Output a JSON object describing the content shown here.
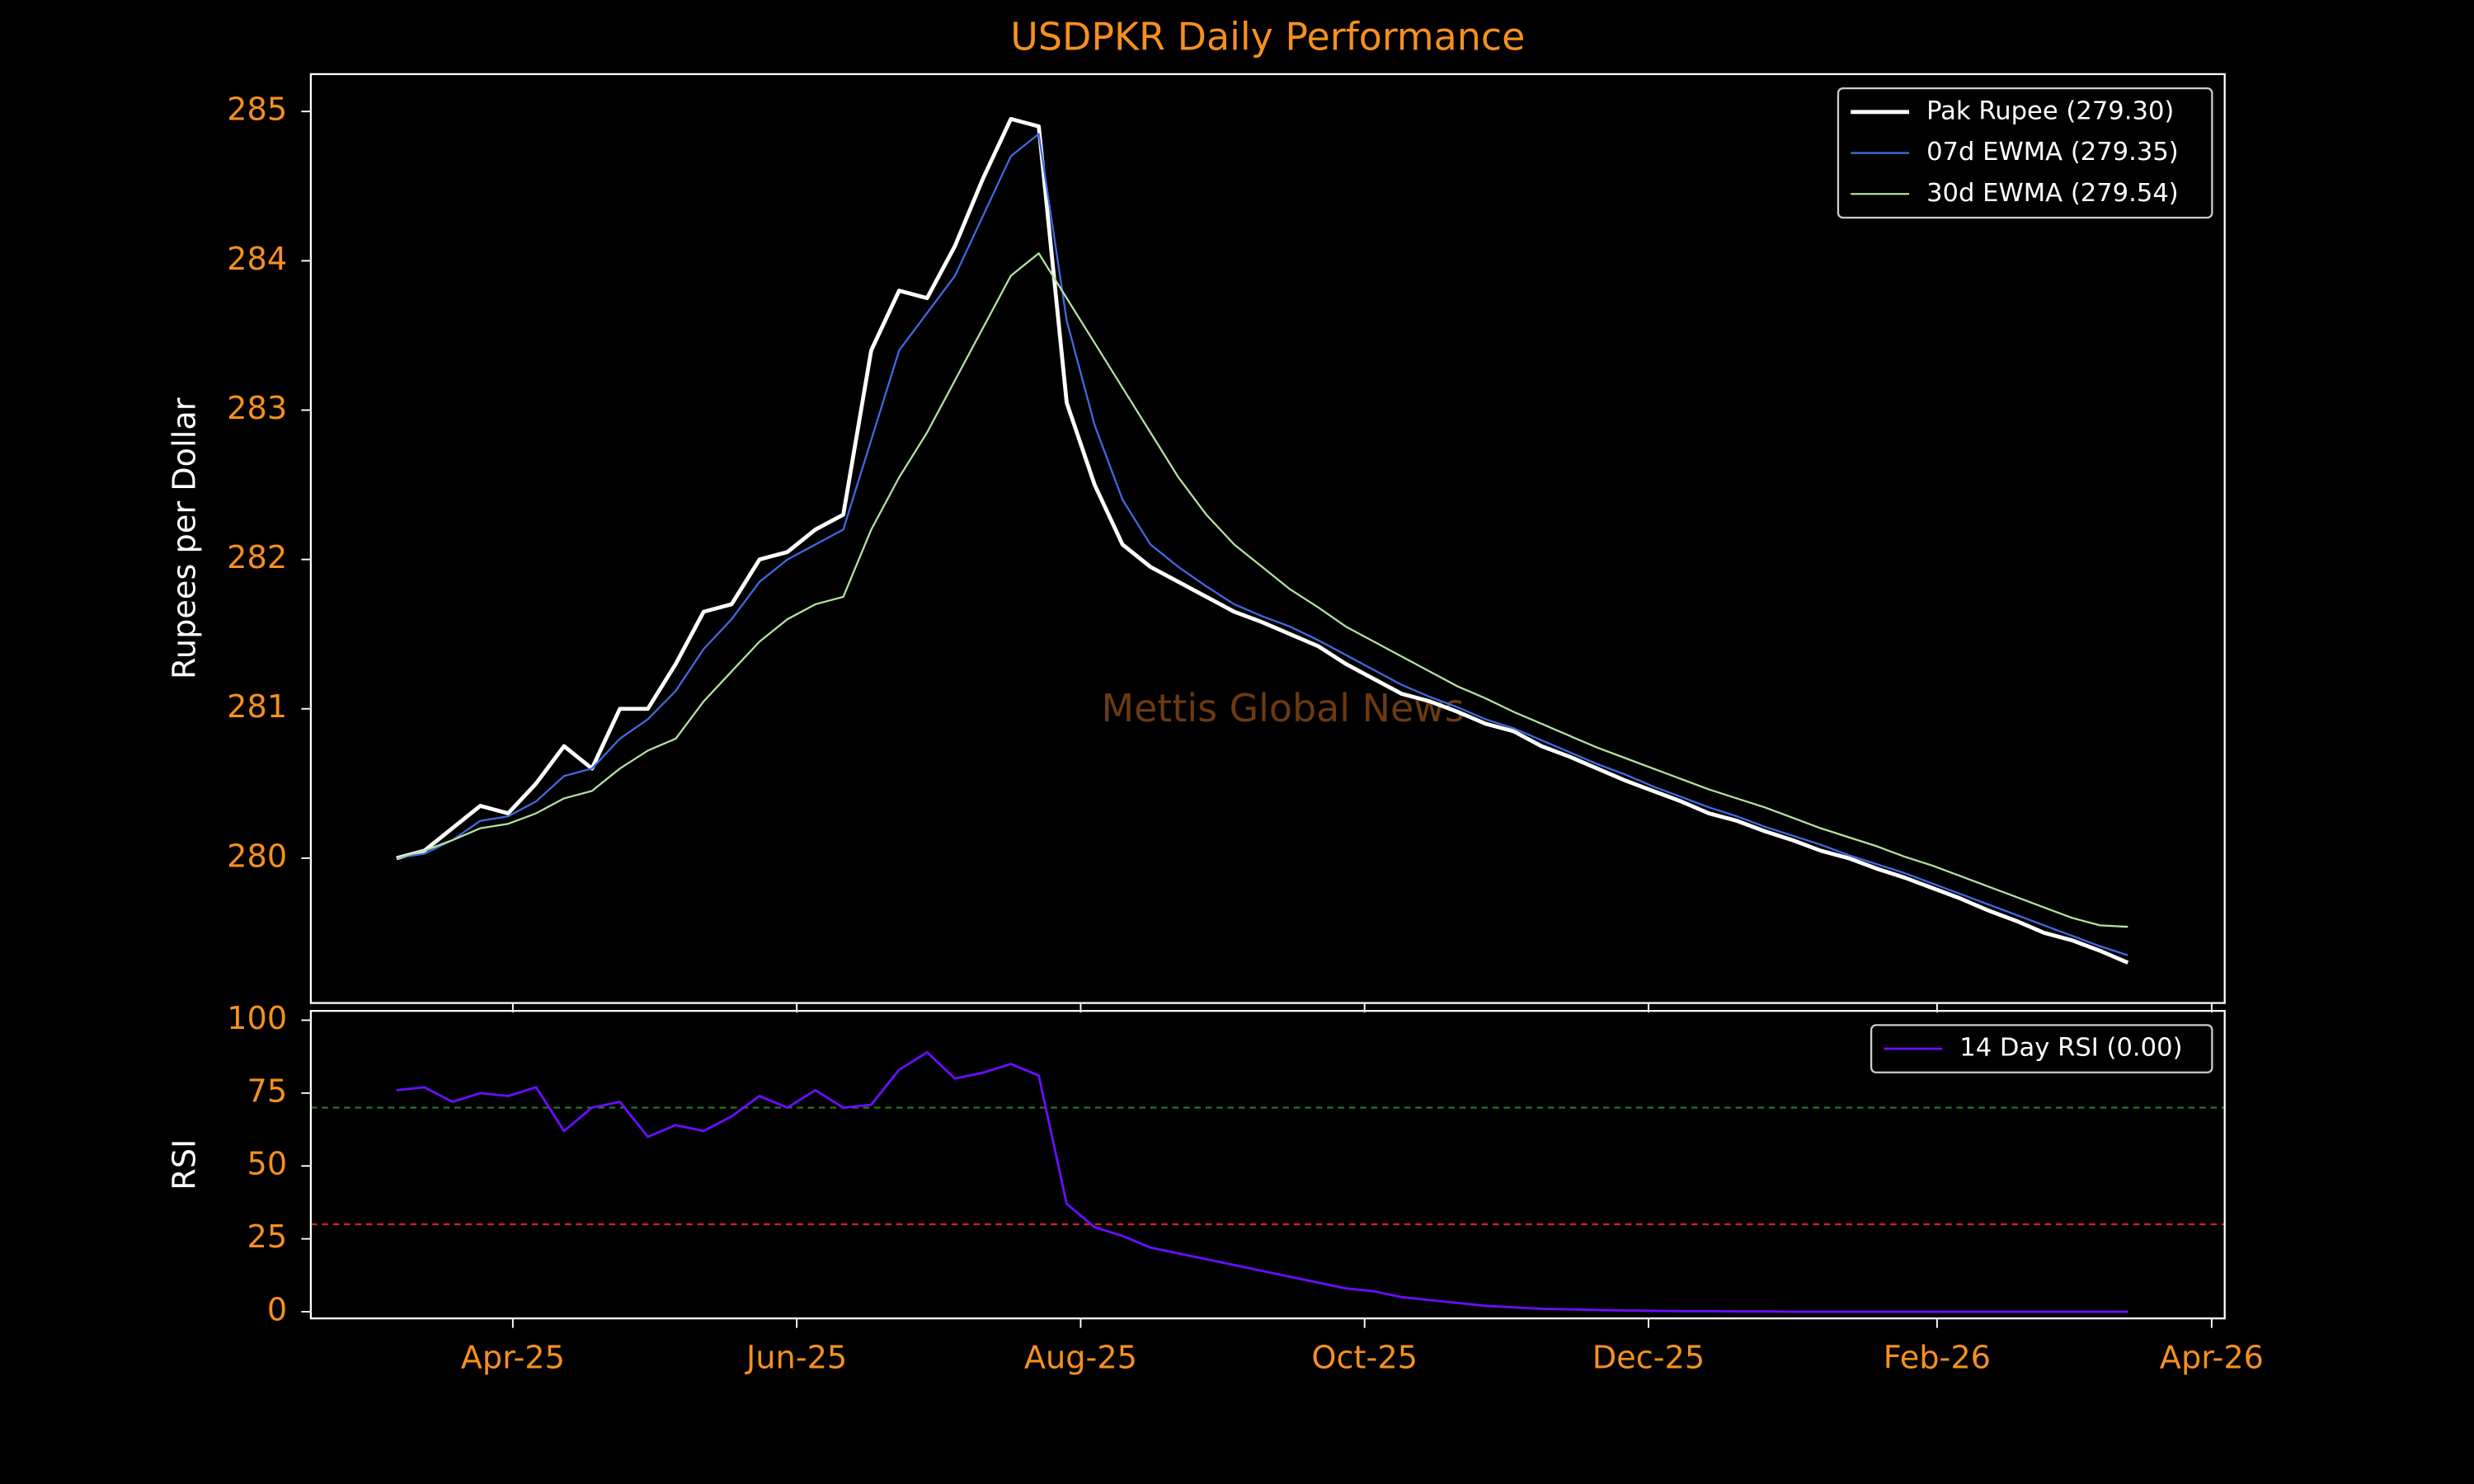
{
  "chart_data": [
    {
      "type": "line",
      "title": "USDPKR Daily Performance",
      "ylabel": "Rupees per Dollar",
      "watermark": "Mettis Global News",
      "x": [
        6,
        12,
        18,
        24,
        30,
        36,
        42,
        48,
        54,
        60,
        66,
        72,
        78,
        84,
        90,
        96,
        102,
        108,
        114,
        120,
        126,
        132,
        138,
        144,
        150,
        156,
        162,
        168,
        174,
        180,
        186,
        192,
        198,
        204,
        210,
        216,
        222,
        228,
        234,
        240,
        246,
        252,
        258,
        264,
        270,
        276,
        282,
        288,
        294,
        300,
        306,
        312,
        318,
        324,
        330,
        336,
        342,
        348,
        354,
        360,
        366,
        372,
        378
      ],
      "ylim": [
        279.03,
        285.25
      ],
      "yticks": [
        280,
        281,
        282,
        283,
        284,
        285
      ],
      "legend": "upper right",
      "series": [
        {
          "name": "Pak Rupee (279.30)",
          "color": "#ffffff",
          "width": 2.5,
          "values": [
            280.0,
            280.05,
            280.2,
            280.35,
            280.3,
            280.5,
            280.75,
            280.6,
            281.0,
            281.0,
            281.3,
            281.65,
            281.7,
            282.0,
            282.05,
            282.2,
            282.3,
            283.4,
            283.8,
            283.75,
            284.1,
            284.55,
            284.95,
            284.9,
            283.05,
            282.5,
            282.1,
            281.95,
            281.85,
            281.75,
            281.65,
            281.58,
            281.5,
            281.42,
            281.3,
            281.2,
            281.1,
            281.05,
            280.98,
            280.9,
            280.85,
            280.75,
            280.68,
            280.6,
            280.52,
            280.45,
            280.38,
            280.3,
            280.25,
            280.18,
            280.12,
            280.05,
            280.0,
            279.93,
            279.87,
            279.8,
            279.73,
            279.65,
            279.58,
            279.5,
            279.45,
            279.38,
            279.3
          ]
        },
        {
          "name": "07d EWMA (279.35)",
          "color": "#4169e1",
          "width": 1.2,
          "values": [
            280.0,
            280.03,
            280.12,
            280.25,
            280.28,
            280.38,
            280.55,
            280.6,
            280.8,
            280.93,
            281.12,
            281.4,
            281.6,
            281.85,
            282.0,
            282.1,
            282.2,
            282.8,
            283.4,
            283.65,
            283.9,
            284.3,
            284.7,
            284.85,
            283.6,
            282.9,
            282.4,
            282.1,
            281.95,
            281.82,
            281.7,
            281.62,
            281.55,
            281.46,
            281.36,
            281.26,
            281.16,
            281.08,
            281.01,
            280.93,
            280.87,
            280.79,
            280.71,
            280.63,
            280.56,
            280.48,
            280.41,
            280.34,
            280.28,
            280.21,
            280.15,
            280.09,
            280.02,
            279.96,
            279.9,
            279.83,
            279.76,
            279.69,
            279.62,
            279.55,
            279.48,
            279.41,
            279.35
          ]
        },
        {
          "name": "30d EWMA (279.54)",
          "color": "#b5e0a0",
          "width": 1.2,
          "values": [
            280.0,
            280.05,
            280.12,
            280.2,
            280.23,
            280.3,
            280.4,
            280.45,
            280.6,
            280.72,
            280.8,
            281.05,
            281.25,
            281.45,
            281.6,
            281.7,
            281.75,
            282.2,
            282.55,
            282.85,
            283.2,
            283.55,
            283.9,
            284.05,
            283.75,
            283.45,
            283.15,
            282.85,
            282.55,
            282.3,
            282.1,
            281.95,
            281.8,
            281.68,
            281.55,
            281.45,
            281.35,
            281.25,
            281.15,
            281.07,
            280.98,
            280.9,
            280.82,
            280.74,
            280.67,
            280.6,
            280.53,
            280.46,
            280.4,
            280.34,
            280.27,
            280.2,
            280.14,
            280.08,
            280.01,
            279.95,
            279.88,
            279.81,
            279.74,
            279.67,
            279.6,
            279.55,
            279.54
          ]
        }
      ]
    },
    {
      "type": "line",
      "ylabel": "RSI",
      "ylim": [
        -2.3,
        103.2
      ],
      "yticks": [
        0,
        25,
        50,
        75,
        100
      ],
      "xlim": [
        -12.4,
        398.8
      ],
      "xticks": [
        {
          "value": 31,
          "label": "Apr-25"
        },
        {
          "value": 92,
          "label": "Jun-25"
        },
        {
          "value": 153,
          "label": "Aug-25"
        },
        {
          "value": 214,
          "label": "Oct-25"
        },
        {
          "value": 275,
          "label": "Dec-25"
        },
        {
          "value": 337,
          "label": "Feb-26"
        },
        {
          "value": 396,
          "label": "Apr-26"
        }
      ],
      "legend": "upper right",
      "hlines": [
        {
          "value": 70,
          "color": "#1f7a1f"
        },
        {
          "value": 30,
          "color": "#d0202a"
        }
      ],
      "series": [
        {
          "name": "14 Day RSI (0.00)",
          "color": "#6a0dff",
          "width": 1.5,
          "values": [
            76,
            77,
            72,
            75,
            74,
            77,
            62,
            70,
            72,
            60,
            64,
            62,
            67,
            74,
            70,
            76,
            70,
            71,
            83,
            89,
            80,
            82,
            85,
            81,
            37,
            29,
            26,
            22,
            20,
            18,
            16,
            14,
            12,
            10,
            8,
            7,
            5,
            4,
            3,
            2,
            1.5,
            1,
            0.8,
            0.6,
            0.4,
            0.3,
            0.2,
            0.2,
            0.1,
            0.1,
            0,
            0,
            0,
            0,
            0,
            0,
            0,
            0,
            0,
            0,
            0,
            0,
            0
          ]
        }
      ]
    }
  ]
}
